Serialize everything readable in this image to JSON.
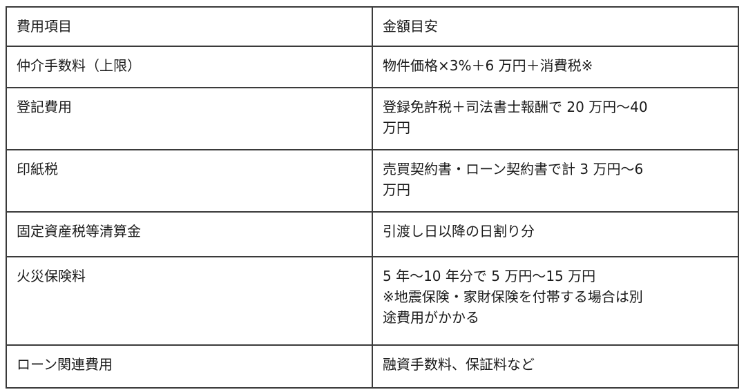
{
  "table": {
    "header": [
      "費用項目",
      "金額目安"
    ],
    "rows": [
      {
        "item": "仲介手数料（上限）",
        "amount": [
          "物件価格×3%＋6 万円＋消費税※"
        ]
      },
      {
        "item": "登記費用",
        "amount": [
          "登録免許税＋司法書士報酬で 20 万円～40",
          "万円"
        ]
      },
      {
        "item": "印紙税",
        "amount": [
          "売買契約書・ローン契約書で計 3 万円～6",
          "万円"
        ]
      },
      {
        "item": "固定資産税等清算金",
        "amount": [
          "引渡し日以降の日割り分"
        ]
      },
      {
        "item": "火災保険料",
        "amount": [
          "5 年～10 年分で 5 万円～15 万円",
          "※地震保険・家財保険を付帯する場合は別",
          "途費用がかかる"
        ]
      },
      {
        "item": "ローン関連費用",
        "amount": [
          "融資手数料、保証料など"
        ]
      }
    ]
  }
}
